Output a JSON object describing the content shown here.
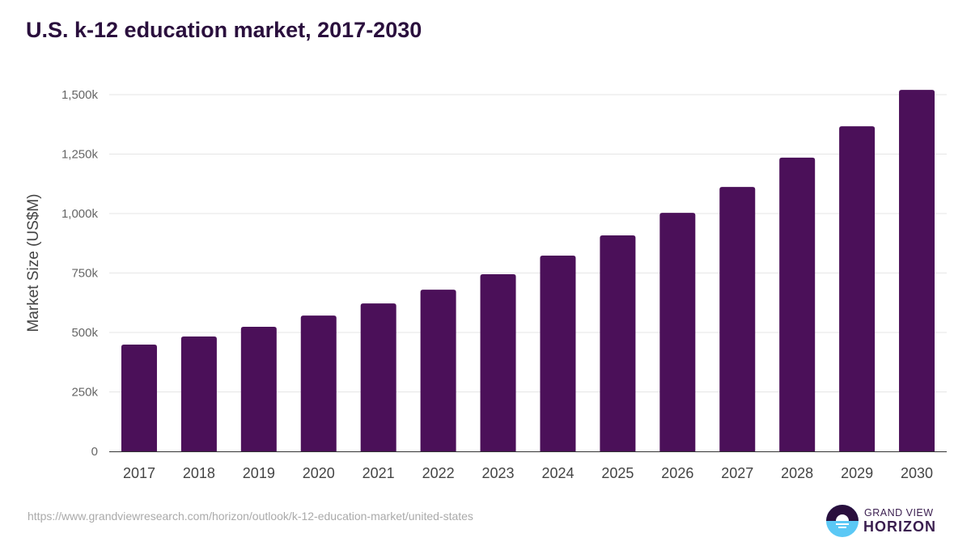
{
  "chart_data": {
    "type": "bar",
    "title": "U.S. k-12 education market, 2017-2030",
    "xlabel": "",
    "ylabel": "Market Size (US$M)",
    "categories": [
      "2017",
      "2018",
      "2019",
      "2020",
      "2021",
      "2022",
      "2023",
      "2024",
      "2025",
      "2026",
      "2027",
      "2028",
      "2029",
      "2030"
    ],
    "values": [
      449,
      483,
      524,
      571,
      622,
      680,
      745,
      823,
      908,
      1003,
      1112,
      1235,
      1367,
      1520
    ],
    "value_unit": "k",
    "ylim": [
      0,
      1500
    ],
    "yticks": [
      0,
      250,
      500,
      750,
      1000,
      1250,
      1500
    ],
    "ytick_labels": [
      "0",
      "250k",
      "500k",
      "750k",
      "1,000k",
      "1,250k",
      "1,500k"
    ],
    "grid": true,
    "bar_color": "#4b1059"
  },
  "source_url": "https://www.grandviewresearch.com/horizon/outlook/k-12-education-market/united-states",
  "logo": {
    "line1": "GRAND VIEW",
    "line2": "HORIZON"
  }
}
